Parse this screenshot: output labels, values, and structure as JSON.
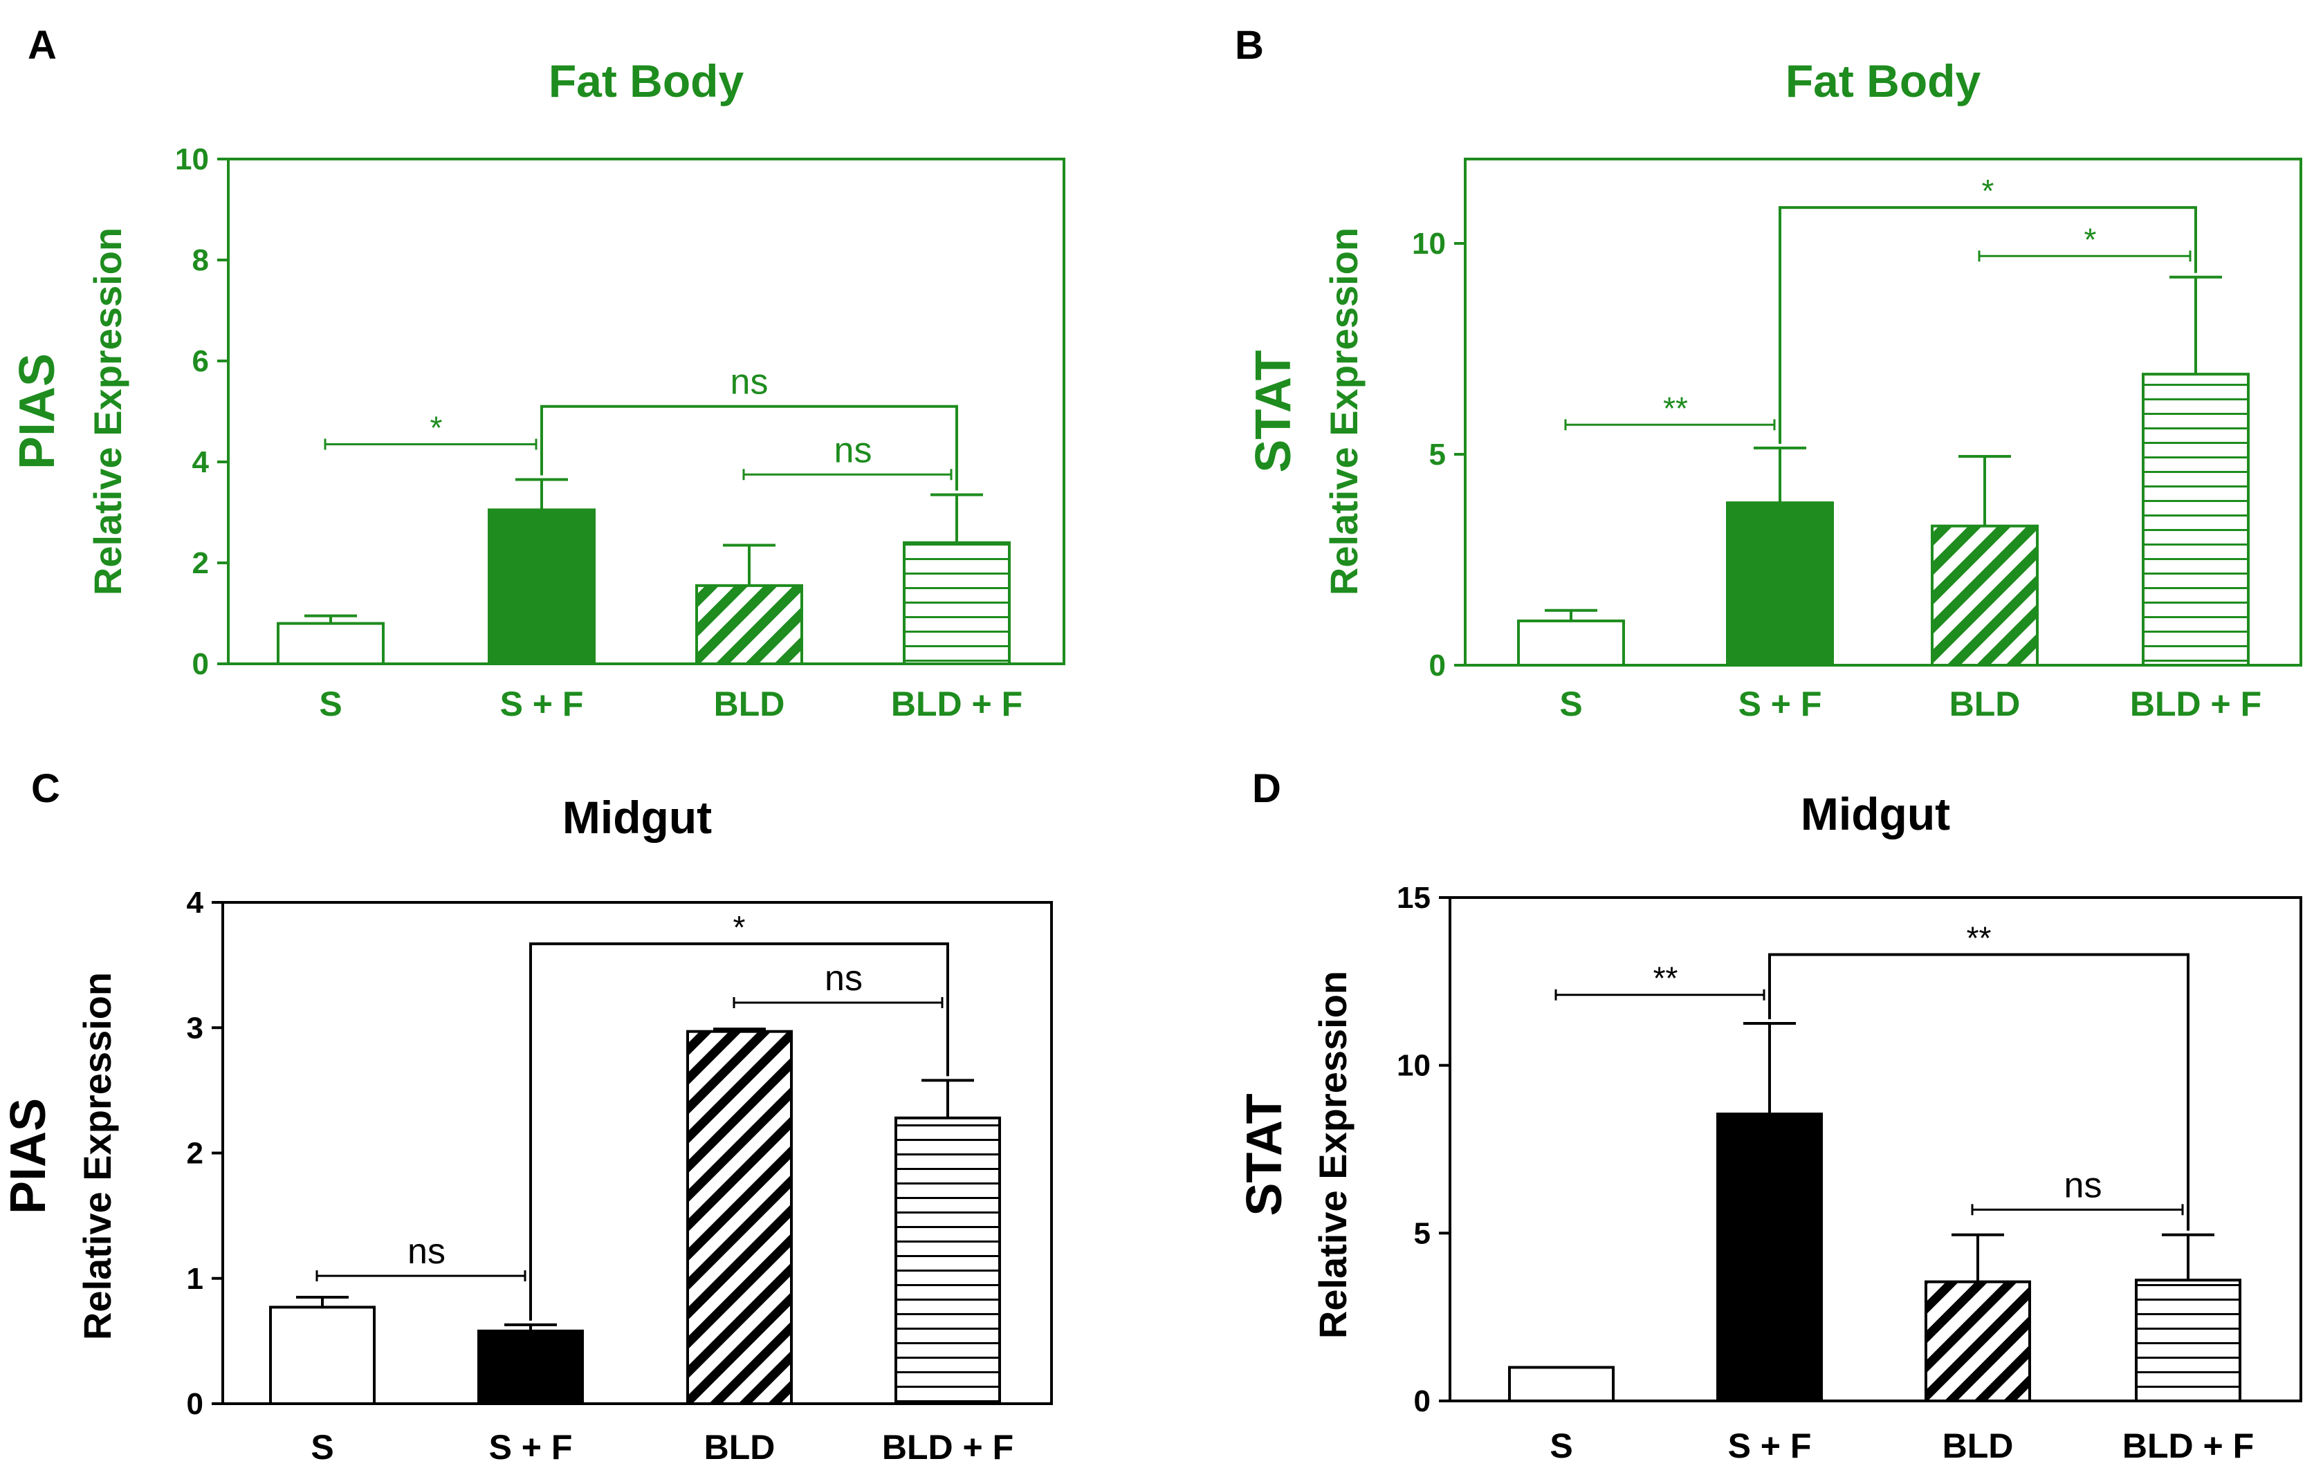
{
  "figure": {
    "label": "Four-panel bar chart figure: PIAS and STAT relative expression in fat body and midgut"
  },
  "colors": {
    "green": "#1e8c1e",
    "black": "#000000",
    "white": "#ffffff"
  },
  "chart_data": [
    {
      "type": "bar",
      "panel": "A",
      "title": "Fat Body",
      "gene": "PIAS",
      "ylabel": "Relative Expression",
      "xlabel": "",
      "color": "#1e8c1e",
      "ylim": [
        0,
        10
      ],
      "yticks": [
        0,
        2,
        4,
        6,
        8,
        10
      ],
      "grid": false,
      "categories": [
        "S",
        "S + F",
        "BLD",
        "BLD + F"
      ],
      "patterns": [
        "open",
        "solid",
        "diagonal",
        "horizontal"
      ],
      "values": [
        0.8,
        3.05,
        1.55,
        2.4
      ],
      "errors": [
        0.15,
        0.6,
        0.8,
        0.95
      ],
      "comparisons": [
        {
          "from": 0,
          "to": 1,
          "y": 4.35,
          "label": "*",
          "style": "capped"
        },
        {
          "from": 1,
          "to": 3,
          "y": 5.1,
          "label": "ns",
          "style": "bracket"
        },
        {
          "from": 2,
          "to": 3,
          "y": 3.75,
          "label": "ns",
          "style": "capped"
        }
      ]
    },
    {
      "type": "bar",
      "panel": "B",
      "title": "Fat Body",
      "gene": "STAT",
      "ylabel": "Relative Expression",
      "xlabel": "",
      "color": "#1e8c1e",
      "ylim": [
        0,
        12
      ],
      "yticks": [
        0,
        5,
        10
      ],
      "grid": false,
      "categories": [
        "S",
        "S + F",
        "BLD",
        "BLD + F"
      ],
      "patterns": [
        "open",
        "solid",
        "diagonal",
        "horizontal"
      ],
      "values": [
        1.05,
        3.85,
        3.3,
        6.9
      ],
      "errors": [
        0.25,
        1.3,
        1.65,
        2.3
      ],
      "comparisons": [
        {
          "from": 0,
          "to": 1,
          "y": 5.7,
          "label": "**",
          "style": "capped"
        },
        {
          "from": 1,
          "to": 3,
          "y": 10.85,
          "label": "*",
          "style": "bracket"
        },
        {
          "from": 2,
          "to": 3,
          "y": 9.7,
          "label": "*",
          "style": "capped"
        }
      ]
    },
    {
      "type": "bar",
      "panel": "C",
      "title": "Midgut",
      "gene": "PIAS",
      "ylabel": "Relative Expression",
      "xlabel": "",
      "color": "#000000",
      "ylim": [
        0,
        4
      ],
      "yticks": [
        0,
        1,
        2,
        3,
        4
      ],
      "grid": false,
      "categories": [
        "S",
        "S + F",
        "BLD",
        "BLD + F"
      ],
      "patterns": [
        "open",
        "solid",
        "diagonal",
        "horizontal"
      ],
      "values": [
        0.77,
        0.58,
        2.97,
        2.28
      ],
      "errors": [
        0.08,
        0.05,
        0.02,
        0.3
      ],
      "comparisons": [
        {
          "from": 0,
          "to": 1,
          "y": 1.02,
          "label": "ns",
          "style": "capped"
        },
        {
          "from": 1,
          "to": 3,
          "y": 3.67,
          "label": "*",
          "style": "bracket"
        },
        {
          "from": 2,
          "to": 3,
          "y": 3.2,
          "label": "ns",
          "style": "capped"
        }
      ]
    },
    {
      "type": "bar",
      "panel": "D",
      "title": "Midgut",
      "gene": "STAT",
      "ylabel": "Relative Expression",
      "xlabel": "",
      "color": "#000000",
      "ylim": [
        0,
        15
      ],
      "yticks": [
        0,
        5,
        10,
        15
      ],
      "grid": false,
      "categories": [
        "S",
        "S + F",
        "BLD",
        "BLD + F"
      ],
      "patterns": [
        "open",
        "solid",
        "diagonal",
        "horizontal"
      ],
      "values": [
        1.0,
        8.55,
        3.55,
        3.6
      ],
      "errors": [
        0.0,
        2.7,
        1.4,
        1.35
      ],
      "comparisons": [
        {
          "from": 0,
          "to": 1,
          "y": 12.1,
          "label": "**",
          "style": "capped"
        },
        {
          "from": 1,
          "to": 3,
          "y": 13.3,
          "label": "**",
          "style": "bracket"
        },
        {
          "from": 2,
          "to": 3,
          "y": 5.7,
          "label": "ns",
          "style": "capped"
        }
      ]
    }
  ]
}
